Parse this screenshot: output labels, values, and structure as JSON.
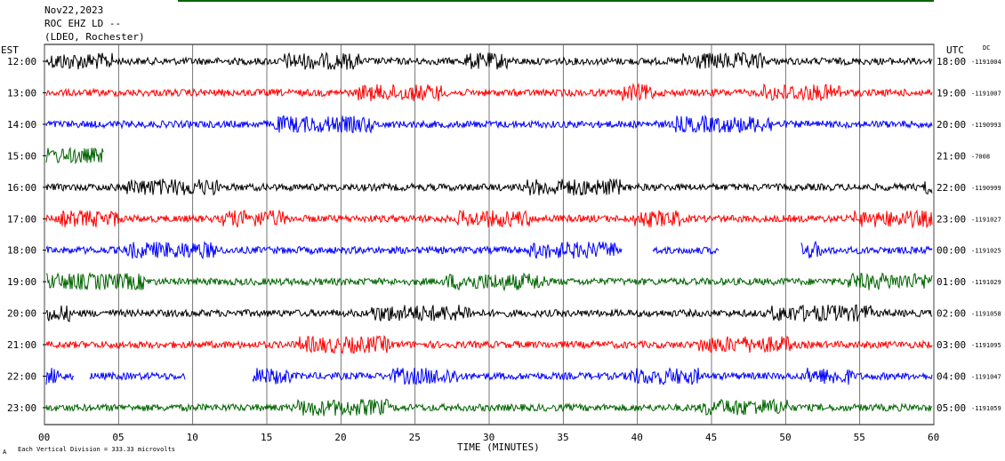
{
  "header": {
    "date": "Nov22,2023",
    "station": "ROC EHZ LD --",
    "network": "(LDEO, Rochester)"
  },
  "chart_data": {
    "type": "line",
    "title": "",
    "xlabel": "TIME (MINUTES)",
    "ylabel": "",
    "xlim": [
      0,
      60
    ],
    "x_ticks": [
      "00",
      "05",
      "10",
      "15",
      "20",
      "25",
      "30",
      "35",
      "40",
      "45",
      "50",
      "55",
      "60"
    ],
    "left_axis_label": "EST",
    "right_axis_label": "UTC",
    "dc_label": "DC",
    "footer": "Each Vertical Division = 333.33 microvolts",
    "colors": [
      "#000000",
      "#ff0000",
      "#0000ff",
      "#006400"
    ],
    "rows": [
      {
        "est": "12:00",
        "utc": "18:00",
        "dc": "-1191004",
        "color": "#000000"
      },
      {
        "est": "13:00",
        "utc": "19:00",
        "dc": "-1191007",
        "color": "#ff0000"
      },
      {
        "est": "14:00",
        "utc": "20:00",
        "dc": "-1190993",
        "color": "#0000ff"
      },
      {
        "est": "15:00",
        "utc": "21:00",
        "dc": "-7008",
        "color": "#006400"
      },
      {
        "est": "16:00",
        "utc": "22:00",
        "dc": "-1190999",
        "color": "#000000"
      },
      {
        "est": "17:00",
        "utc": "23:00",
        "dc": "-1191027",
        "color": "#ff0000"
      },
      {
        "est": "18:00",
        "utc": "00:00",
        "dc": "-1191025",
        "color": "#0000ff"
      },
      {
        "est": "19:00",
        "utc": "01:00",
        "dc": "-1191029",
        "color": "#006400"
      },
      {
        "est": "20:00",
        "utc": "02:00",
        "dc": "-1191058",
        "color": "#000000"
      },
      {
        "est": "21:00",
        "utc": "03:00",
        "dc": "-1191095",
        "color": "#ff0000"
      },
      {
        "est": "22:00",
        "utc": "04:00",
        "dc": "-1191047",
        "color": "#0000ff"
      },
      {
        "est": "23:00",
        "utc": "05:00",
        "dc": "-1191059",
        "color": "#006400"
      }
    ],
    "gaps_minutes": [
      {
        "row": "15:00",
        "from": 4,
        "to": 60
      },
      {
        "row": "18:00",
        "from": 39,
        "to": 41
      },
      {
        "row": "18:00",
        "from": 45.5,
        "to": 51
      },
      {
        "row": "22:00",
        "from": 2,
        "to": 3
      },
      {
        "row": "22:00",
        "from": 9.5,
        "to": 14
      }
    ],
    "grid": true
  }
}
